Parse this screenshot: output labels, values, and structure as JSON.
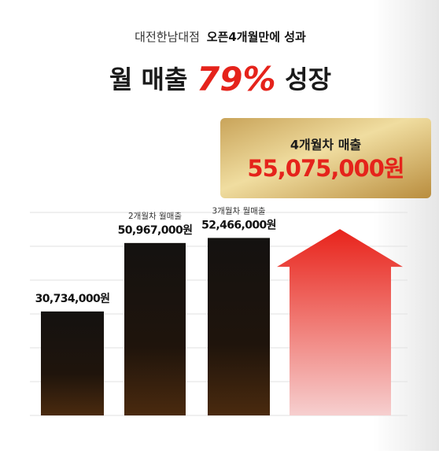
{
  "chart_data": {
    "type": "bar",
    "subtitle_parts": [
      "대전한남대점",
      "오픈4개월만에 성과"
    ],
    "title_parts": [
      "월 매출",
      "79%",
      "성장"
    ],
    "categories": [
      null,
      "2개월차 월매출",
      "3개월차 월매출",
      "4개월차 매출"
    ],
    "values": [
      30734000,
      50967000,
      52466000,
      55075000
    ],
    "value_labels": [
      "30,734,000원",
      "50,967,000원",
      "52,466,000원",
      "55,075,000원"
    ],
    "ylim": [
      0,
      60000000
    ],
    "grid": true
  }
}
